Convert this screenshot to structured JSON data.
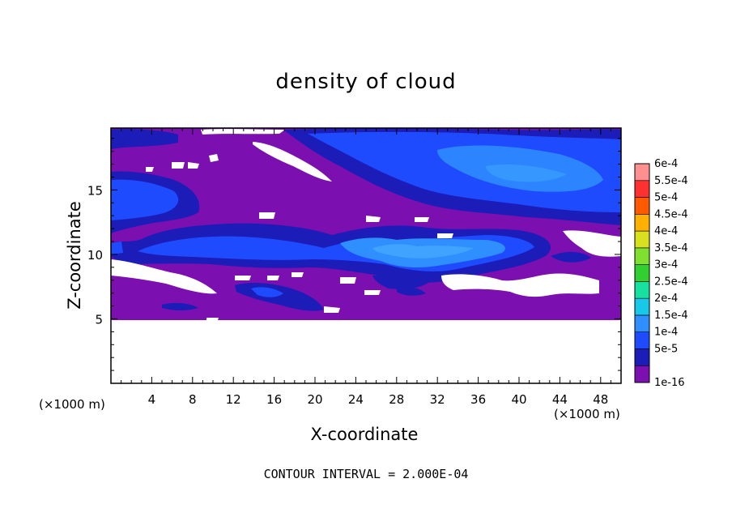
{
  "chart_data": {
    "type": "heatmap",
    "title": "density of cloud",
    "xlabel": "X-coordinate",
    "ylabel": "Z-coordinate",
    "x_unit_label": "(×1000 m)",
    "xlim": [
      0,
      50
    ],
    "ylim": [
      0,
      19.8
    ],
    "xticks": [
      4,
      8,
      12,
      16,
      20,
      24,
      28,
      32,
      36,
      40,
      44,
      48
    ],
    "yticks": [
      5,
      10,
      15
    ],
    "footer": "CONTOUR INTERVAL = 2.000E-04",
    "colorbar": {
      "levels": [
        "1e-16",
        "5e-5",
        "1e-4",
        "1.5e-4",
        "2e-4",
        "2.5e-4",
        "3e-4",
        "3.5e-4",
        "4e-4",
        "4.5e-4",
        "5e-4",
        "5.5e-4",
        "6e-4"
      ],
      "colors": [
        "#7b0fb0",
        "#1c1cb8",
        "#1f4bff",
        "#2f8fff",
        "#18c8e8",
        "#18e0a0",
        "#30d030",
        "#80e030",
        "#d8e020",
        "#ffb000",
        "#ff5a00",
        "#ff3030",
        "#ff9090"
      ]
    },
    "regions": {
      "background_fill_color": "#7b0fb0",
      "cloud_top_km": 19.7,
      "cloud_base_km": 5.0,
      "clear_below_km": 5.0
    }
  }
}
